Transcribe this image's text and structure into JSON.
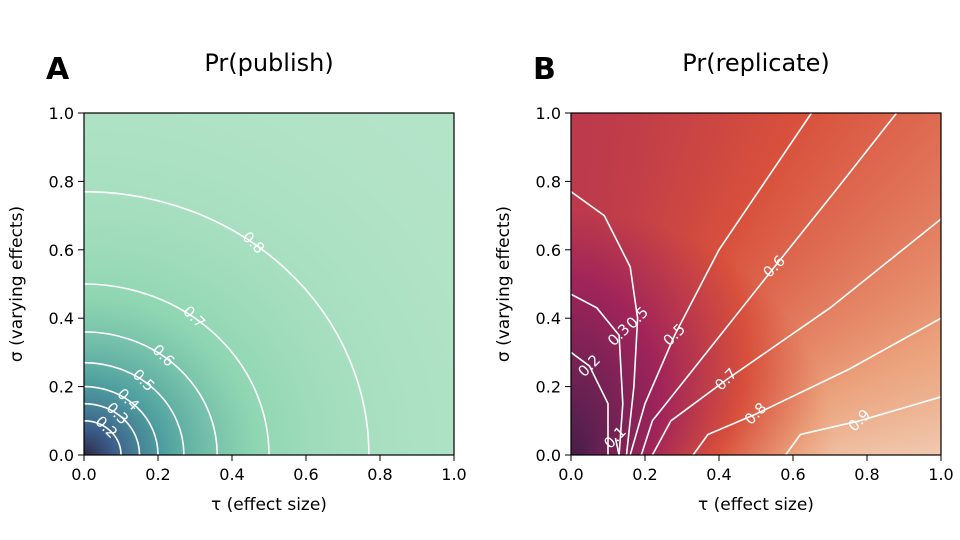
{
  "chart_data": [
    {
      "panel": "A",
      "type": "heatmap",
      "title": "Pr(publish)",
      "xlabel": "τ (effect size)",
      "ylabel": "σ (varying effects)",
      "xlim": [
        0,
        1
      ],
      "ylim": [
        0,
        1
      ],
      "xticks": [
        "0.0",
        "0.2",
        "0.4",
        "0.6",
        "0.8",
        "1.0"
      ],
      "yticks": [
        "0.0",
        "0.2",
        "0.4",
        "0.6",
        "0.8",
        "1.0"
      ],
      "colormap": [
        "#2b1a2e",
        "#3b5d8a",
        "#4fa0a0",
        "#8fd6b2",
        "#bfe8cf"
      ],
      "contours": [
        {
          "level": "0.2",
          "radius": 0.1
        },
        {
          "level": "0.3",
          "radius": 0.15
        },
        {
          "level": "0.4",
          "radius": 0.2
        },
        {
          "level": "0.5",
          "radius": 0.27
        },
        {
          "level": "0.6",
          "radius": 0.36
        },
        {
          "level": "0.7",
          "radius": 0.5
        },
        {
          "level": "0.8",
          "radius": 0.77
        }
      ]
    },
    {
      "panel": "B",
      "type": "heatmap",
      "title": "Pr(replicate)",
      "xlabel": "τ (effect size)",
      "ylabel": "σ (varying effects)",
      "xlim": [
        0,
        1
      ],
      "ylim": [
        0,
        1
      ],
      "xticks": [
        "0.0",
        "0.2",
        "0.4",
        "0.6",
        "0.8",
        "1.0"
      ],
      "yticks": [
        "0.0",
        "0.2",
        "0.4",
        "0.6",
        "0.8",
        "1.0"
      ],
      "colormap": [
        "#1a1024",
        "#5a2050",
        "#a0245a",
        "#d8503c",
        "#eba27c",
        "#f3dcc8"
      ],
      "contours": [
        {
          "level": "0.1",
          "points": [
            [
              0.13,
              0
            ],
            [
              0.12,
              0.05
            ]
          ]
        },
        {
          "level": "0.2",
          "points": [
            [
              0.1,
              0
            ],
            [
              0.1,
              0.15
            ],
            [
              0.05,
              0.26
            ],
            [
              0,
              0.3
            ]
          ]
        },
        {
          "level": "0.3",
          "points": [
            [
              0.13,
              0
            ],
            [
              0.14,
              0.15
            ],
            [
              0.13,
              0.35
            ],
            [
              0.07,
              0.43
            ],
            [
              0,
              0.47
            ]
          ]
        },
        {
          "level": "0.5",
          "points": [
            [
              0.16,
              0
            ],
            [
              0.2,
              0.15
            ],
            [
              0.28,
              0.35
            ],
            [
              0.4,
              0.6
            ],
            [
              0.65,
              1.0
            ]
          ]
        },
        {
          "level": "0.5",
          "points": [
            [
              0,
              0.77
            ],
            [
              0.09,
              0.7
            ],
            [
              0.16,
              0.55
            ],
            [
              0.18,
              0.4
            ],
            [
              0.17,
              0.2
            ],
            [
              0.15,
              0
            ]
          ]
        },
        {
          "level": "0.6",
          "points": [
            [
              0.19,
              0
            ],
            [
              0.22,
              0.1
            ],
            [
              0.33,
              0.25
            ],
            [
              0.55,
              0.55
            ],
            [
              0.72,
              0.78
            ],
            [
              0.88,
              1.0
            ]
          ]
        },
        {
          "level": "0.7",
          "points": [
            [
              0.22,
              0
            ],
            [
              0.27,
              0.1
            ],
            [
              0.42,
              0.22
            ],
            [
              0.7,
              0.43
            ],
            [
              1.0,
              0.69
            ]
          ]
        },
        {
          "level": "0.8",
          "points": [
            [
              0.33,
              0
            ],
            [
              0.37,
              0.06
            ],
            [
              0.5,
              0.12
            ],
            [
              0.75,
              0.25
            ],
            [
              1.0,
              0.4
            ]
          ]
        },
        {
          "level": "0.9",
          "points": [
            [
              0.58,
              0
            ],
            [
              0.62,
              0.06
            ],
            [
              0.78,
              0.1
            ],
            [
              1.0,
              0.17
            ]
          ]
        }
      ]
    }
  ]
}
